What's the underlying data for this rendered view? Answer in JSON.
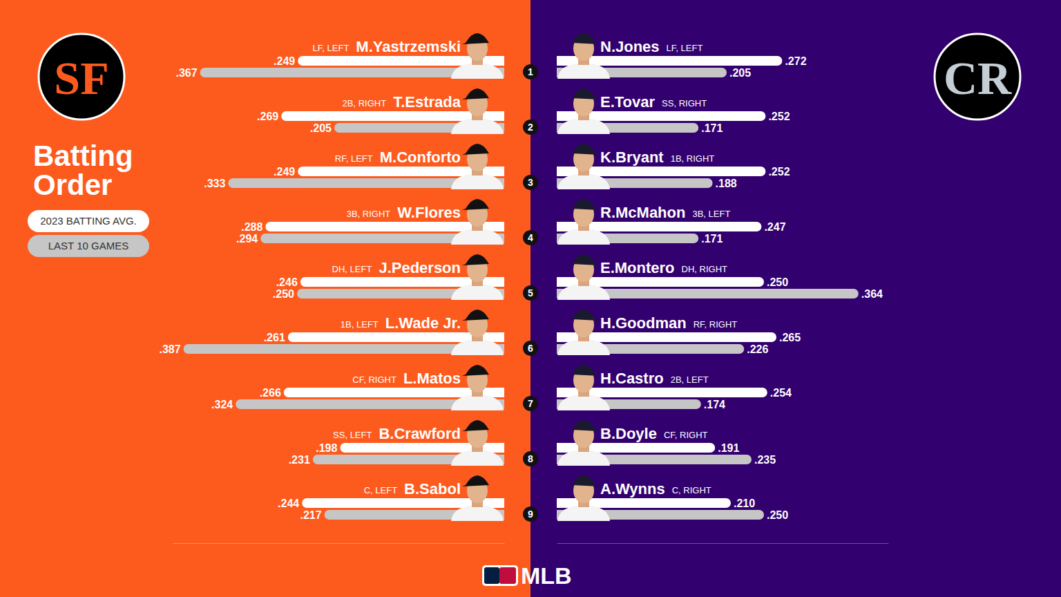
{
  "chart_data": [
    {
      "type": "bar",
      "orientation": "horizontal",
      "title": "Batting Order",
      "logo": "SF",
      "color": "#fd5a1e",
      "categories": [
        "M.Yastrzemski",
        "T.Estrada",
        "M.Conforto",
        "W.Flores",
        "J.Pederson",
        "L.Wade Jr.",
        "L.Matos",
        "B.Crawford",
        "B.Sabol"
      ],
      "positions": [
        "LF, LEFT",
        "2B, RIGHT",
        "RF, LEFT",
        "3B, RIGHT",
        "DH, LEFT",
        "1B, LEFT",
        "CF, RIGHT",
        "SS, LEFT",
        "C, LEFT"
      ],
      "series": [
        {
          "name": "2023 BATTING AVG.",
          "color": "#ffffff",
          "values": [
            0.249,
            0.269,
            0.249,
            0.288,
            0.246,
            0.261,
            0.266,
            0.198,
            0.244
          ],
          "value_labels": [
            ".249",
            ".269",
            ".249",
            ".288",
            ".246",
            ".261",
            ".266",
            ".198",
            ".244"
          ]
        },
        {
          "name": "LAST 10 GAMES",
          "color": "#c6c6c6",
          "values": [
            0.367,
            0.205,
            0.333,
            0.294,
            0.25,
            0.387,
            0.324,
            0.231,
            0.217
          ],
          "value_labels": [
            ".367",
            ".205",
            ".333",
            ".294",
            ".250",
            ".387",
            ".324",
            ".231",
            ".217"
          ]
        }
      ],
      "xlim": [
        0,
        0.4
      ],
      "xticks": [],
      "tick_labels": false,
      "data_labels": true
    },
    {
      "type": "bar",
      "orientation": "horizontal",
      "logo": "CR",
      "color": "#33006f",
      "categories": [
        "N.Jones",
        "E.Tovar",
        "K.Bryant",
        "R.McMahon",
        "E.Montero",
        "H.Goodman",
        "H.Castro",
        "B.Doyle",
        "A.Wynns"
      ],
      "positions": [
        "LF, LEFT",
        "SS, RIGHT",
        "1B, RIGHT",
        "3B, LEFT",
        "DH, RIGHT",
        "RF, RIGHT",
        "2B, LEFT",
        "CF, RIGHT",
        "C, RIGHT"
      ],
      "series": [
        {
          "name": "2023 BATTING AVG.",
          "color": "#ffffff",
          "values": [
            0.272,
            0.252,
            0.252,
            0.247,
            0.25,
            0.265,
            0.254,
            0.191,
            0.21
          ],
          "value_labels": [
            ".272",
            ".252",
            ".252",
            ".247",
            ".250",
            ".265",
            ".254",
            ".191",
            ".210"
          ]
        },
        {
          "name": "LAST 10 GAMES",
          "color": "#c6c6c6",
          "values": [
            0.205,
            0.171,
            0.188,
            0.171,
            0.364,
            0.226,
            0.174,
            0.235,
            0.25
          ],
          "value_labels": [
            ".205",
            ".171",
            ".188",
            ".171",
            ".364",
            ".226",
            ".174",
            ".235",
            ".250"
          ]
        }
      ],
      "xlim": [
        0,
        0.4
      ],
      "xticks": [],
      "tick_labels": false,
      "data_labels": true
    }
  ],
  "batting_order": [
    1,
    2,
    3,
    4,
    5,
    6,
    7,
    8,
    9
  ],
  "footer": "MLB"
}
